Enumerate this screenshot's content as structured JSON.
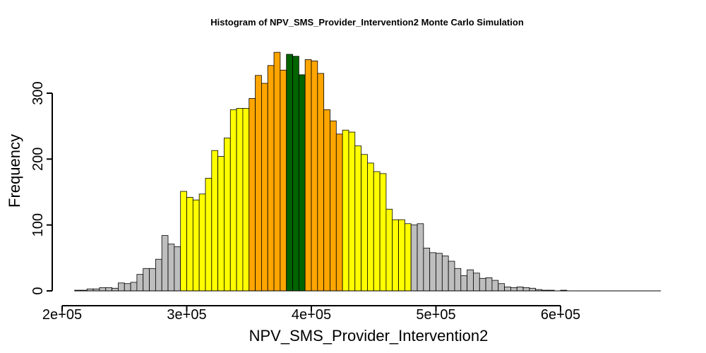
{
  "chart_data": {
    "type": "bar",
    "title": "Histogram of  NPV_SMS_Provider_Intervention2  Monte Carlo Simulation",
    "xlabel": "NPV_SMS_Provider_Intervention2",
    "ylabel": "Frequency",
    "xlim": [
      200000,
      680000
    ],
    "ylim": [
      0,
      365
    ],
    "x_ticks": [
      200000,
      300000,
      400000,
      500000,
      600000
    ],
    "x_tick_labels": [
      "2e+05",
      "3e+05",
      "4e+05",
      "5e+05",
      "6e+05"
    ],
    "y_ticks": [
      0,
      100,
      200,
      300
    ],
    "y_tick_labels": [
      "0",
      "100",
      "200",
      "300"
    ],
    "bin_width": 5000,
    "bin_start": 210000,
    "grid": false,
    "legend": "none",
    "colors": {
      "tail": "#bebebe",
      "band90": "#ffff00",
      "band50": "#ffa500",
      "band10": "#006400"
    },
    "frequencies": [
      1,
      1,
      3,
      3,
      5,
      5,
      4,
      12,
      11,
      13,
      25,
      34,
      34,
      48,
      84,
      71,
      67,
      151,
      142,
      138,
      147,
      171,
      213,
      204,
      232,
      275,
      277,
      277,
      292,
      327,
      315,
      342,
      362,
      335,
      359,
      356,
      328,
      351,
      349,
      330,
      275,
      258,
      238,
      244,
      241,
      220,
      207,
      194,
      181,
      178,
      124,
      108,
      108,
      102,
      100,
      102,
      65,
      58,
      57,
      53,
      45,
      34,
      23,
      32,
      27,
      19,
      20,
      16,
      11,
      6,
      5,
      6,
      5,
      4,
      2,
      1,
      1,
      0,
      1,
      0,
      0,
      0,
      0,
      0,
      0,
      0,
      0,
      0,
      0,
      0,
      0,
      0,
      0,
      0,
      0,
      0
    ],
    "bin_bands": [
      "tail",
      "tail",
      "tail",
      "tail",
      "tail",
      "tail",
      "tail",
      "tail",
      "tail",
      "tail",
      "tail",
      "tail",
      "tail",
      "tail",
      "tail",
      "tail",
      "tail",
      "band90",
      "band90",
      "band90",
      "band90",
      "band90",
      "band90",
      "band90",
      "band90",
      "band90",
      "band90",
      "band90",
      "band50",
      "band50",
      "band50",
      "band50",
      "band50",
      "band50",
      "band10",
      "band10",
      "band10",
      "band50",
      "band50",
      "band50",
      "band50",
      "band50",
      "band50",
      "band90",
      "band90",
      "band90",
      "band90",
      "band90",
      "band90",
      "band90",
      "band90",
      "band90",
      "band90",
      "band90",
      "tail",
      "tail",
      "tail",
      "tail",
      "tail",
      "tail",
      "tail",
      "tail",
      "tail",
      "tail",
      "tail",
      "tail",
      "tail",
      "tail",
      "tail",
      "tail",
      "tail",
      "tail",
      "tail",
      "tail",
      "tail",
      "tail",
      "tail",
      "tail",
      "tail",
      "tail",
      "tail",
      "tail",
      "tail",
      "tail",
      "tail",
      "tail",
      "tail",
      "tail",
      "tail",
      "tail",
      "tail",
      "tail",
      "tail",
      "tail",
      "tail",
      "tail"
    ]
  }
}
